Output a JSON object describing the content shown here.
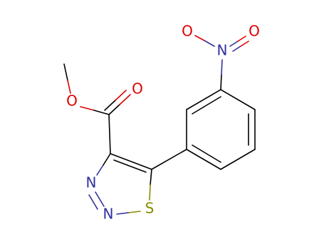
{
  "atoms": [
    {
      "label": "O"
    },
    {
      "label": "N"
    },
    {
      "label": "O"
    },
    {
      "label": "O"
    },
    {
      "label": "O"
    },
    {
      "label": "N"
    },
    {
      "label": "N"
    },
    {
      "label": "S"
    }
  ]
}
